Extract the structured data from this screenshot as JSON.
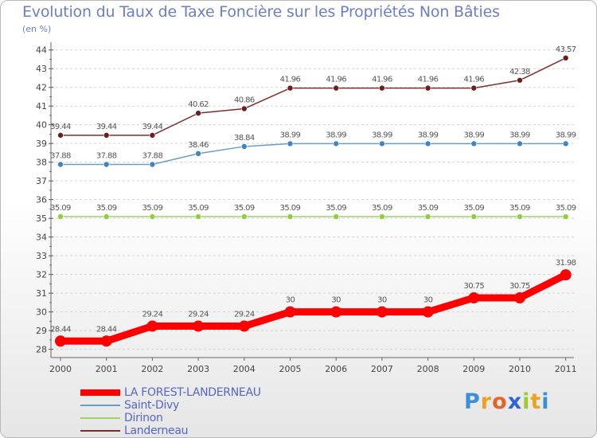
{
  "title": "Evolution du Taux de Taxe Foncière sur les Propriétés Non Bâties",
  "unit_label": "(en %)",
  "logo": {
    "text": "Proxiti",
    "letters": [
      {
        "ch": "P",
        "color": "#3b8fd6"
      },
      {
        "ch": "r",
        "color": "#f0a020"
      },
      {
        "ch": "o",
        "color": "#e8612a"
      },
      {
        "ch": "x",
        "color": "#2f64d8"
      },
      {
        "ch": "i",
        "color": "#9fc92e"
      },
      {
        "ch": "t",
        "color": "#f0a020"
      },
      {
        "ch": "i",
        "color": "#3b8fd6"
      }
    ]
  },
  "chart_data": {
    "type": "line",
    "title": "Evolution du Taux de Taxe Foncière sur les Propriétés Non Bâties",
    "ylabel": "(en %)",
    "xlabel": "",
    "categories": [
      "2000",
      "2001",
      "2002",
      "2003",
      "2004",
      "2005",
      "2006",
      "2007",
      "2008",
      "2009",
      "2010",
      "2011"
    ],
    "y_ticks": [
      28,
      29,
      30,
      31,
      32,
      33,
      34,
      35,
      36,
      37,
      38,
      39,
      40,
      41,
      42,
      43,
      44
    ],
    "ylim": [
      27.9,
      44.2
    ],
    "grid": "horizontal dashed",
    "legend_position": "bottom-left",
    "series": [
      {
        "name": "LA FOREST-LANDERNEAU",
        "color": "#ff0000",
        "marker_fill": "#ff0000",
        "highlight": true,
        "values": [
          28.44,
          28.44,
          29.24,
          29.24,
          29.24,
          30,
          30,
          30,
          30,
          30.75,
          30.75,
          31.98
        ],
        "labels": [
          "28.44",
          "28.44",
          "29.24",
          "29.24",
          "29.24",
          "30",
          "30",
          "30",
          "30",
          "30.75",
          "30.75",
          "31.98"
        ]
      },
      {
        "name": "Saint-Divy",
        "color": "#6b9cc9",
        "marker_fill": "#3d85c6",
        "highlight": false,
        "values": [
          37.88,
          37.88,
          37.88,
          38.46,
          38.84,
          38.99,
          38.99,
          38.99,
          38.99,
          38.99,
          38.99,
          38.99
        ],
        "labels": [
          "37.88",
          "37.88",
          "37.88",
          "38.46",
          "38.84",
          "38.99",
          "38.99",
          "38.99",
          "38.99",
          "38.99",
          "38.99",
          "38.99"
        ]
      },
      {
        "name": "Dirinon",
        "color": "#9fd16a",
        "marker_fill": "#8fcf3a",
        "highlight": false,
        "values": [
          35.09,
          35.09,
          35.09,
          35.09,
          35.09,
          35.09,
          35.09,
          35.09,
          35.09,
          35.09,
          35.09,
          35.09
        ],
        "labels": [
          "35.09",
          "35.09",
          "35.09",
          "35.09",
          "35.09",
          "35.09",
          "35.09",
          "35.09",
          "35.09",
          "35.09",
          "35.09",
          "35.09"
        ]
      },
      {
        "name": "Landerneau",
        "color": "#7b2e2e",
        "marker_fill": "#6b1e1e",
        "highlight": false,
        "values": [
          39.44,
          39.44,
          39.44,
          40.62,
          40.86,
          41.96,
          41.96,
          41.96,
          41.96,
          41.96,
          42.38,
          43.57
        ],
        "labels": [
          "39.44",
          "39.44",
          "39.44",
          "40.62",
          "40.86",
          "41.96",
          "41.96",
          "41.96",
          "41.96",
          "41.96",
          "42.38",
          "43.57"
        ]
      }
    ]
  }
}
